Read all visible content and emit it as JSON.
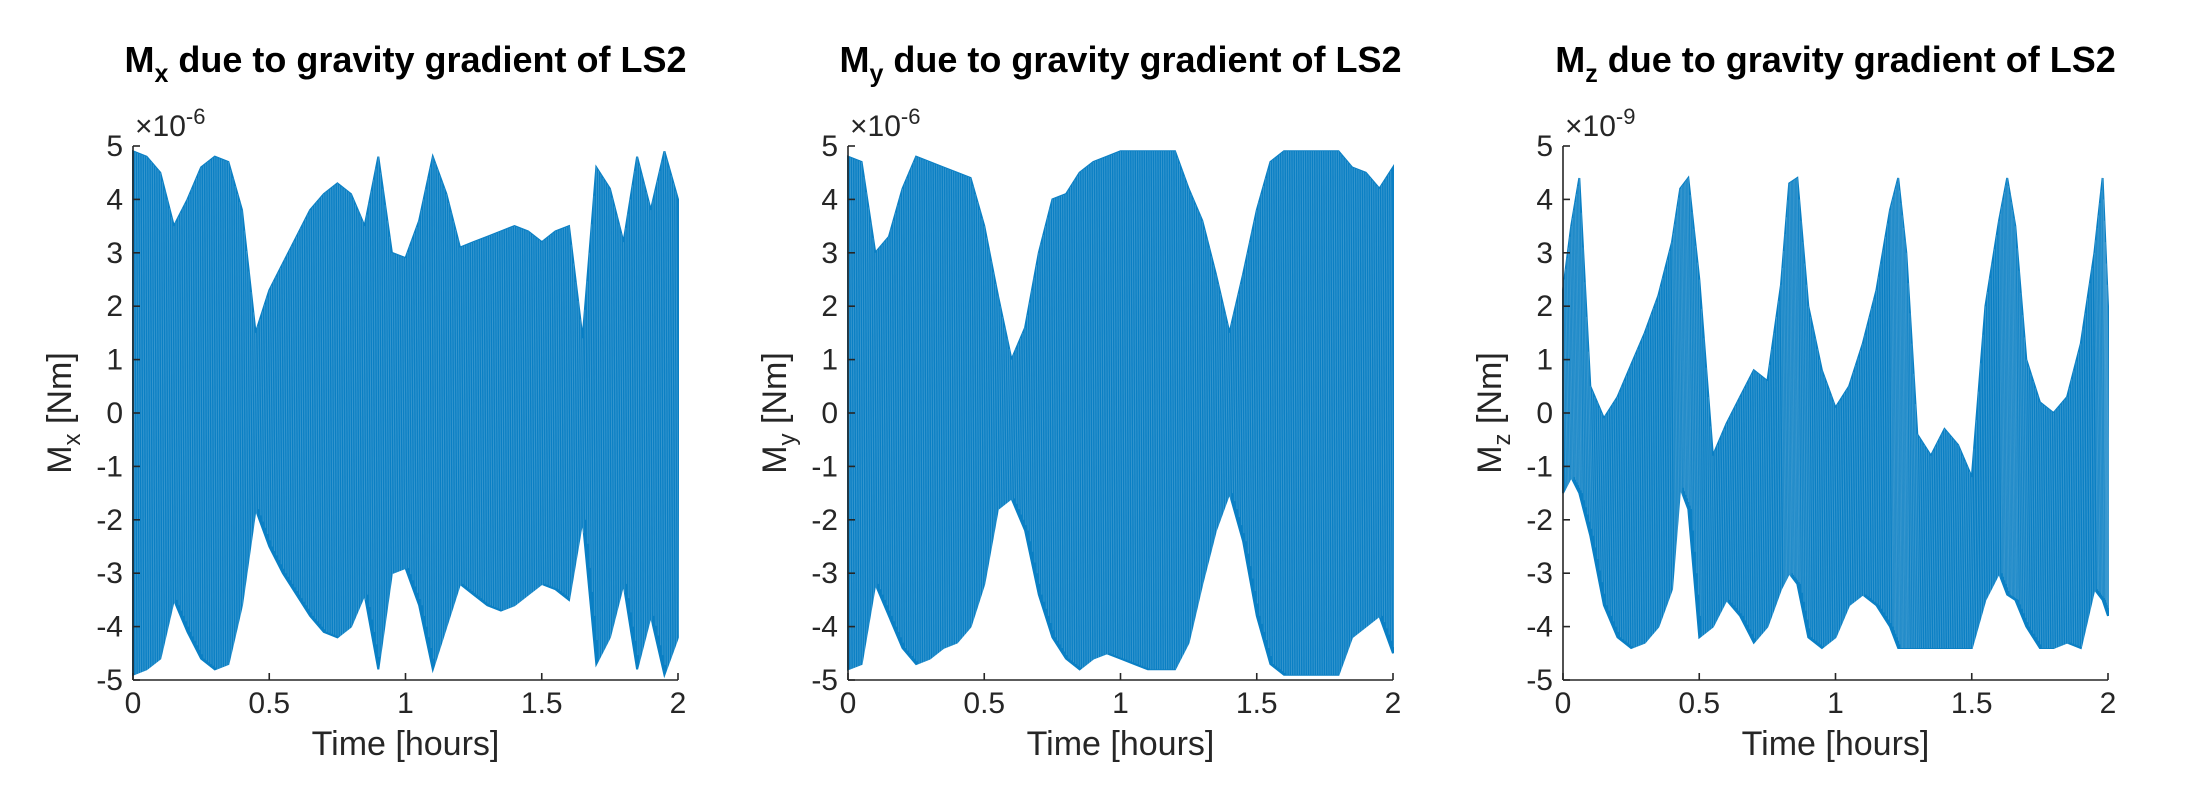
{
  "figure": {
    "background": "#ffffff",
    "series_color": "#0a7fc4"
  },
  "chart_data": [
    {
      "type": "area",
      "title_main": "M",
      "title_sub": "x",
      "title_rest": " due to gravity gradient of LS2",
      "xlabel": "Time [hours]",
      "ylabel_main": "M",
      "ylabel_sub": "x",
      "ylabel_rest": " [Nm]",
      "exponent_prefix": "×10",
      "exponent": "-6",
      "xlim": [
        0,
        2
      ],
      "ylim": [
        -5,
        5
      ],
      "xticks": [
        "0",
        "0.5",
        "1",
        "1.5",
        "2"
      ],
      "yticks": [
        "-5",
        "-4",
        "-3",
        "-2",
        "-1",
        "0",
        "1",
        "2",
        "3",
        "4",
        "5"
      ],
      "grid": false,
      "legend": "none",
      "series": [
        {
          "x": [
            0,
            0.05,
            0.1,
            0.15,
            0.2,
            0.25,
            0.3,
            0.35,
            0.4,
            0.45,
            0.5,
            0.55,
            0.6,
            0.65,
            0.7,
            0.75,
            0.8,
            0.85,
            0.9,
            0.95,
            1.0,
            1.05,
            1.1,
            1.15,
            1.2,
            1.25,
            1.3,
            1.35,
            1.4,
            1.45,
            1.5,
            1.55,
            1.6,
            1.65,
            1.7,
            1.75,
            1.8,
            1.85,
            1.9,
            1.95,
            2.0
          ],
          "upper": [
            4.9,
            4.8,
            4.5,
            3.5,
            4.0,
            4.6,
            4.8,
            4.7,
            3.8,
            1.5,
            2.3,
            2.8,
            3.3,
            3.8,
            4.1,
            4.3,
            4.1,
            3.5,
            4.8,
            3.0,
            2.9,
            3.6,
            4.8,
            4.1,
            3.1,
            3.2,
            3.3,
            3.4,
            3.5,
            3.4,
            3.2,
            3.4,
            3.5,
            1.4,
            4.6,
            4.2,
            3.2,
            4.8,
            3.8,
            4.9,
            4.0
          ],
          "lower": [
            -4.9,
            -4.8,
            -4.6,
            -3.5,
            -4.1,
            -4.6,
            -4.8,
            -4.7,
            -3.6,
            -1.8,
            -2.5,
            -3.0,
            -3.4,
            -3.8,
            -4.1,
            -4.2,
            -4.0,
            -3.4,
            -4.8,
            -3.0,
            -2.9,
            -3.6,
            -4.8,
            -4.0,
            -3.2,
            -3.4,
            -3.6,
            -3.7,
            -3.6,
            -3.4,
            -3.2,
            -3.3,
            -3.5,
            -2.0,
            -4.7,
            -4.2,
            -3.2,
            -4.8,
            -3.8,
            -4.9,
            -4.2
          ]
        }
      ]
    },
    {
      "type": "area",
      "title_main": "M",
      "title_sub": "y",
      "title_rest": " due to gravity gradient of LS2",
      "xlabel": "Time [hours]",
      "ylabel_main": "M",
      "ylabel_sub": "y",
      "ylabel_rest": " [Nm]",
      "exponent_prefix": "×10",
      "exponent": "-6",
      "xlim": [
        0,
        2
      ],
      "ylim": [
        -5,
        5
      ],
      "xticks": [
        "0",
        "0.5",
        "1",
        "1.5",
        "2"
      ],
      "yticks": [
        "-5",
        "-4",
        "-3",
        "-2",
        "-1",
        "0",
        "1",
        "2",
        "3",
        "4",
        "5"
      ],
      "grid": false,
      "legend": "none",
      "series": [
        {
          "x": [
            0,
            0.05,
            0.1,
            0.15,
            0.2,
            0.25,
            0.3,
            0.35,
            0.4,
            0.45,
            0.5,
            0.55,
            0.6,
            0.65,
            0.7,
            0.75,
            0.8,
            0.85,
            0.9,
            0.95,
            1.0,
            1.05,
            1.1,
            1.15,
            1.2,
            1.25,
            1.3,
            1.35,
            1.4,
            1.45,
            1.5,
            1.55,
            1.6,
            1.65,
            1.7,
            1.75,
            1.8,
            1.85,
            1.9,
            1.95,
            2.0
          ],
          "upper": [
            4.8,
            4.7,
            3.0,
            3.3,
            4.2,
            4.8,
            4.7,
            4.6,
            4.5,
            4.4,
            3.5,
            2.2,
            1.0,
            1.6,
            3.0,
            4.0,
            4.1,
            4.5,
            4.7,
            4.8,
            4.9,
            4.9,
            4.9,
            4.9,
            4.9,
            4.2,
            3.6,
            2.6,
            1.5,
            2.6,
            3.8,
            4.7,
            4.9,
            4.9,
            4.9,
            4.9,
            4.9,
            4.6,
            4.5,
            4.2,
            4.6
          ],
          "lower": [
            -4.8,
            -4.7,
            -3.2,
            -3.8,
            -4.4,
            -4.7,
            -4.6,
            -4.4,
            -4.3,
            -4.0,
            -3.2,
            -1.8,
            -1.6,
            -2.2,
            -3.4,
            -4.2,
            -4.6,
            -4.8,
            -4.6,
            -4.5,
            -4.6,
            -4.7,
            -4.8,
            -4.8,
            -4.8,
            -4.3,
            -3.2,
            -2.2,
            -1.5,
            -2.4,
            -3.8,
            -4.7,
            -4.9,
            -4.9,
            -4.9,
            -4.9,
            -4.9,
            -4.2,
            -4.0,
            -3.8,
            -4.5
          ]
        }
      ]
    },
    {
      "type": "area",
      "title_main": "M",
      "title_sub": "z",
      "title_rest": " due to gravity gradient of LS2",
      "xlabel": "Time [hours]",
      "ylabel_main": "M",
      "ylabel_sub": "z",
      "ylabel_rest": " [Nm]",
      "exponent_prefix": "×10",
      "exponent": "-9",
      "xlim": [
        0,
        2
      ],
      "ylim": [
        -5,
        5
      ],
      "xticks": [
        "0",
        "0.5",
        "1",
        "1.5",
        "2"
      ],
      "yticks": [
        "-5",
        "-4",
        "-3",
        "-2",
        "-1",
        "0",
        "1",
        "2",
        "3",
        "4",
        "5"
      ],
      "grid": false,
      "legend": "none",
      "series": [
        {
          "x": [
            0,
            0.03,
            0.06,
            0.1,
            0.15,
            0.2,
            0.25,
            0.3,
            0.35,
            0.4,
            0.43,
            0.46,
            0.5,
            0.55,
            0.6,
            0.65,
            0.7,
            0.75,
            0.8,
            0.83,
            0.86,
            0.9,
            0.95,
            1.0,
            1.05,
            1.1,
            1.15,
            1.2,
            1.23,
            1.26,
            1.3,
            1.35,
            1.4,
            1.45,
            1.5,
            1.55,
            1.6,
            1.63,
            1.66,
            1.7,
            1.75,
            1.8,
            1.85,
            1.9,
            1.95,
            1.98,
            2.0
          ],
          "upper": [
            2.3,
            3.5,
            4.4,
            0.5,
            -0.1,
            0.3,
            0.9,
            1.5,
            2.2,
            3.2,
            4.2,
            4.4,
            2.5,
            -0.8,
            -0.2,
            0.3,
            0.8,
            0.6,
            2.4,
            4.3,
            4.4,
            2.0,
            0.8,
            0.1,
            0.5,
            1.3,
            2.3,
            3.8,
            4.4,
            3.0,
            -0.4,
            -0.8,
            -0.3,
            -0.6,
            -1.2,
            2.0,
            3.6,
            4.4,
            3.5,
            1.0,
            0.2,
            0.0,
            0.3,
            1.3,
            3.0,
            4.4,
            2.0
          ],
          "lower": [
            -1.5,
            -1.2,
            -1.5,
            -2.3,
            -3.6,
            -4.2,
            -4.4,
            -4.3,
            -4.0,
            -3.3,
            -1.4,
            -1.8,
            -4.2,
            -4.0,
            -3.5,
            -3.8,
            -4.3,
            -4.0,
            -3.3,
            -3.0,
            -3.2,
            -4.2,
            -4.4,
            -4.2,
            -3.6,
            -3.4,
            -3.6,
            -4.0,
            -4.4,
            -4.4,
            -4.4,
            -4.4,
            -4.4,
            -4.4,
            -4.4,
            -3.5,
            -3.0,
            -3.4,
            -3.5,
            -4.0,
            -4.4,
            -4.4,
            -4.3,
            -4.4,
            -3.3,
            -3.5,
            -3.8
          ]
        }
      ]
    }
  ]
}
